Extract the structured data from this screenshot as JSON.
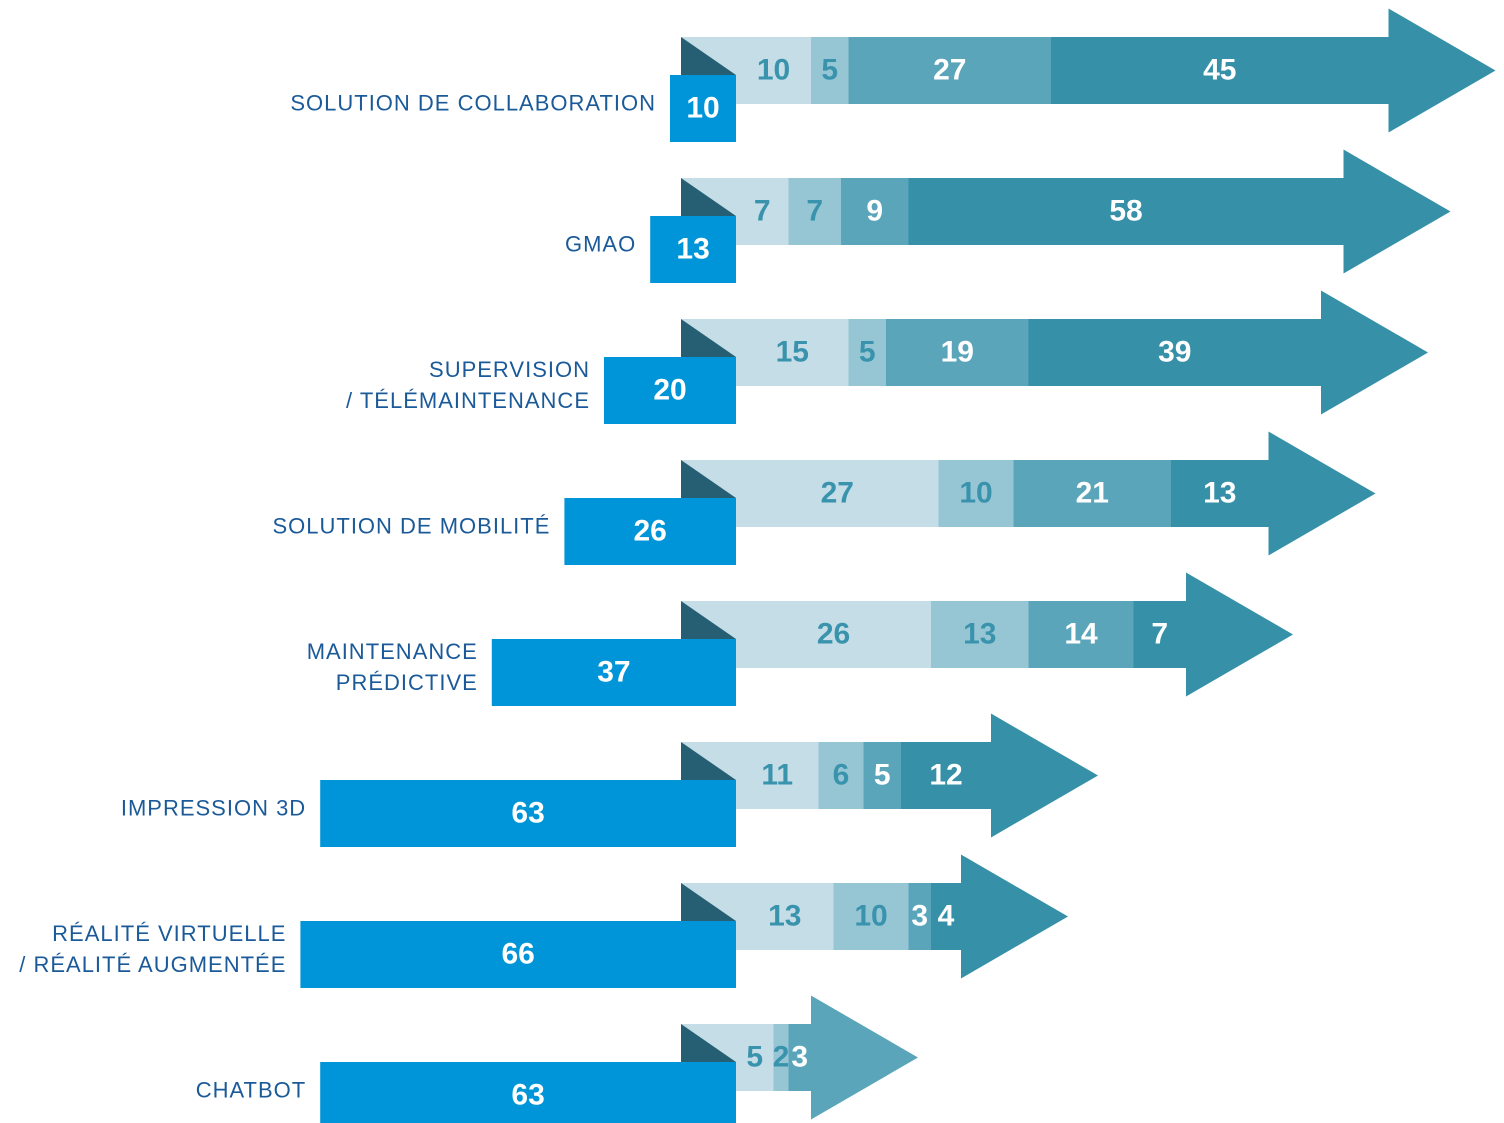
{
  "chart_data": {
    "type": "arrow-stacked-bar",
    "categories": [
      "SOLUTION DE COLLABORATION",
      "GMAO",
      "SUPERVISION\n/ TÉLÉMAINTENANCE",
      "SOLUTION DE MOBILITÉ",
      "MAINTENANCE\nPRÉDICTIVE",
      "IMPRESSION 3D",
      "RÉALITÉ VIRTUELLE\n/ RÉALITÉ AUGMENTÉE",
      "CHATBOT"
    ],
    "series": [
      {
        "color": "#0095d8",
        "values": [
          10,
          13,
          20,
          26,
          37,
          63,
          66,
          63
        ]
      },
      {
        "color": "#c4dde6",
        "values": [
          10,
          7,
          15,
          27,
          26,
          11,
          13,
          5
        ]
      },
      {
        "color": "#96c6d4",
        "values": [
          5,
          7,
          5,
          10,
          13,
          6,
          10,
          2
        ]
      },
      {
        "color": "#5ba5bb",
        "values": [
          27,
          9,
          19,
          21,
          14,
          5,
          3,
          3
        ]
      },
      {
        "color": "#3590a8",
        "values": [
          45,
          58,
          39,
          13,
          7,
          12,
          4,
          null
        ]
      }
    ]
  }
}
